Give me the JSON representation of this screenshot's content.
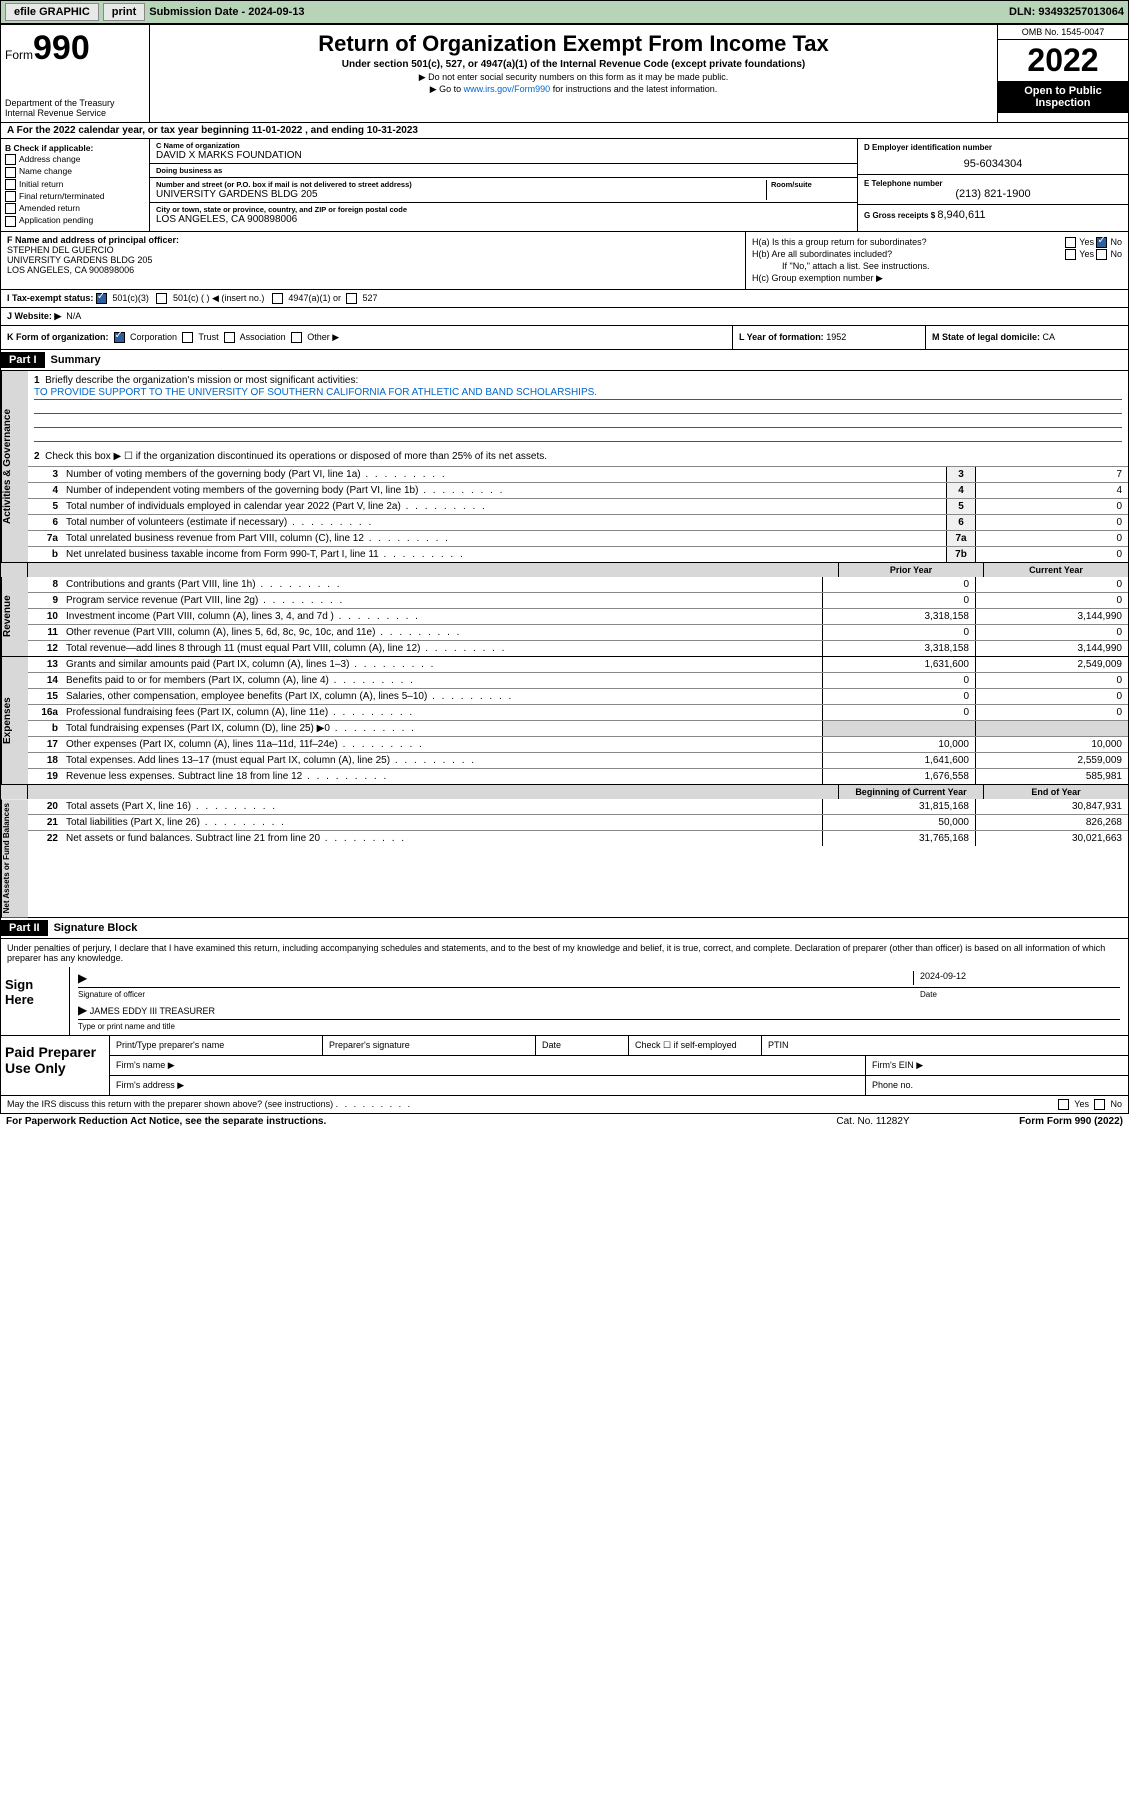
{
  "topbar": {
    "efile": "efile GRAPHIC",
    "print": "print",
    "sub_label": "Submission Date - ",
    "sub_date": "2024-09-13",
    "dln_label": "DLN: ",
    "dln": "93493257013064"
  },
  "header": {
    "form_label": "Form",
    "form_num": "990",
    "dept": "Department of the Treasury",
    "irs": "Internal Revenue Service",
    "title": "Return of Organization Exempt From Income Tax",
    "sub": "Under section 501(c), 527, or 4947(a)(1) of the Internal Revenue Code (except private foundations)",
    "note1": "▶ Do not enter social security numbers on this form as it may be made public.",
    "note2_pre": "▶ Go to ",
    "note2_link": "www.irs.gov/Form990",
    "note2_post": " for instructions and the latest information.",
    "omb": "OMB No. 1545-0047",
    "year": "2022",
    "open": "Open to Public Inspection"
  },
  "rowA": {
    "text_pre": "A For the 2022 calendar year, or tax year beginning ",
    "begin": "11-01-2022",
    "mid": " , and ending ",
    "end": "10-31-2023"
  },
  "colB": {
    "hdr": "B Check if applicable:",
    "items": [
      "Address change",
      "Name change",
      "Initial return",
      "Final return/terminated",
      "Amended return",
      "Application pending"
    ]
  },
  "colC": {
    "name_lbl": "C Name of organization",
    "name": "DAVID X MARKS FOUNDATION",
    "dba_lbl": "Doing business as",
    "dba": "",
    "addr_lbl": "Number and street (or P.O. box if mail is not delivered to street address)",
    "room_lbl": "Room/suite",
    "addr": "UNIVERSITY GARDENS BLDG 205",
    "city_lbl": "City or town, state or province, country, and ZIP or foreign postal code",
    "city": "LOS ANGELES, CA  900898006"
  },
  "colDE": {
    "d_lbl": "D Employer identification number",
    "d_val": "95-6034304",
    "e_lbl": "E Telephone number",
    "e_val": "(213) 821-1900",
    "g_lbl": "G Gross receipts $ ",
    "g_val": "8,940,611"
  },
  "rowF": {
    "lbl": "F Name and address of principal officer:",
    "name": "STEPHEN DEL GUERCIO",
    "addr1": "UNIVERSITY GARDENS BLDG 205",
    "addr2": "LOS ANGELES, CA  900898006"
  },
  "rowH": {
    "ha": "H(a)  Is this a group return for subordinates?",
    "hb": "H(b)  Are all subordinates included?",
    "hb_note": "If \"No,\" attach a list. See instructions.",
    "hc": "H(c)  Group exemption number ▶",
    "yes": "Yes",
    "no": "No"
  },
  "rowI": {
    "lbl": "I    Tax-exempt status:",
    "opt1": "501(c)(3)",
    "opt2": "501(c) (  ) ◀ (insert no.)",
    "opt3": "4947(a)(1) or",
    "opt4": "527"
  },
  "rowJ": {
    "lbl": "J   Website: ▶",
    "val": "N/A"
  },
  "rowK": {
    "lbl": "K Form of organization:",
    "opts": [
      "Corporation",
      "Trust",
      "Association",
      "Other ▶"
    ],
    "l_lbl": "L Year of formation: ",
    "l_val": "1952",
    "m_lbl": "M State of legal domicile: ",
    "m_val": "CA"
  },
  "part1": {
    "hdr": "Part I",
    "title": "Summary",
    "briefly_lbl": "Briefly describe the organization's mission or most significant activities:",
    "mission": "TO PROVIDE SUPPORT TO THE UNIVERSITY OF SOUTHERN CALIFORNIA FOR ATHLETIC AND BAND SCHOLARSHIPS.",
    "line2": "Check this box ▶ ☐  if the organization discontinued its operations or disposed of more than 25% of its net assets.",
    "sections": {
      "gov": "Activities & Governance",
      "rev": "Revenue",
      "exp": "Expenses",
      "net": "Net Assets or Fund Balances"
    },
    "lines_gov": [
      {
        "n": "3",
        "t": "Number of voting members of the governing body (Part VI, line 1a)",
        "box": "3",
        "v": "7"
      },
      {
        "n": "4",
        "t": "Number of independent voting members of the governing body (Part VI, line 1b)",
        "box": "4",
        "v": "4"
      },
      {
        "n": "5",
        "t": "Total number of individuals employed in calendar year 2022 (Part V, line 2a)",
        "box": "5",
        "v": "0"
      },
      {
        "n": "6",
        "t": "Total number of volunteers (estimate if necessary)",
        "box": "6",
        "v": "0"
      },
      {
        "n": "7a",
        "t": "Total unrelated business revenue from Part VIII, column (C), line 12",
        "box": "7a",
        "v": "0"
      },
      {
        "n": "b",
        "t": "Net unrelated business taxable income from Form 990-T, Part I, line 11",
        "box": "7b",
        "v": "0"
      }
    ],
    "col_hdrs": {
      "prior": "Prior Year",
      "curr": "Current Year",
      "boy": "Beginning of Current Year",
      "eoy": "End of Year"
    },
    "lines_rev": [
      {
        "n": "8",
        "t": "Contributions and grants (Part VIII, line 1h)",
        "p": "0",
        "c": "0"
      },
      {
        "n": "9",
        "t": "Program service revenue (Part VIII, line 2g)",
        "p": "0",
        "c": "0"
      },
      {
        "n": "10",
        "t": "Investment income (Part VIII, column (A), lines 3, 4, and 7d )",
        "p": "3,318,158",
        "c": "3,144,990"
      },
      {
        "n": "11",
        "t": "Other revenue (Part VIII, column (A), lines 5, 6d, 8c, 9c, 10c, and 11e)",
        "p": "0",
        "c": "0"
      },
      {
        "n": "12",
        "t": "Total revenue—add lines 8 through 11 (must equal Part VIII, column (A), line 12)",
        "p": "3,318,158",
        "c": "3,144,990"
      }
    ],
    "lines_exp": [
      {
        "n": "13",
        "t": "Grants and similar amounts paid (Part IX, column (A), lines 1–3)",
        "p": "1,631,600",
        "c": "2,549,009"
      },
      {
        "n": "14",
        "t": "Benefits paid to or for members (Part IX, column (A), line 4)",
        "p": "0",
        "c": "0"
      },
      {
        "n": "15",
        "t": "Salaries, other compensation, employee benefits (Part IX, column (A), lines 5–10)",
        "p": "0",
        "c": "0"
      },
      {
        "n": "16a",
        "t": "Professional fundraising fees (Part IX, column (A), line 11e)",
        "p": "0",
        "c": "0"
      },
      {
        "n": "b",
        "t": "Total fundraising expenses (Part IX, column (D), line 25) ▶0",
        "p": "",
        "c": "",
        "shade": true
      },
      {
        "n": "17",
        "t": "Other expenses (Part IX, column (A), lines 11a–11d, 11f–24e)",
        "p": "10,000",
        "c": "10,000"
      },
      {
        "n": "18",
        "t": "Total expenses. Add lines 13–17 (must equal Part IX, column (A), line 25)",
        "p": "1,641,600",
        "c": "2,559,009"
      },
      {
        "n": "19",
        "t": "Revenue less expenses. Subtract line 18 from line 12",
        "p": "1,676,558",
        "c": "585,981"
      }
    ],
    "lines_net": [
      {
        "n": "20",
        "t": "Total assets (Part X, line 16)",
        "p": "31,815,168",
        "c": "30,847,931"
      },
      {
        "n": "21",
        "t": "Total liabilities (Part X, line 26)",
        "p": "50,000",
        "c": "826,268"
      },
      {
        "n": "22",
        "t": "Net assets or fund balances. Subtract line 21 from line 20",
        "p": "31,765,168",
        "c": "30,021,663"
      }
    ]
  },
  "part2": {
    "hdr": "Part II",
    "title": "Signature Block",
    "decl": "Under penalties of perjury, I declare that I have examined this return, including accompanying schedules and statements, and to the best of my knowledge and belief, it is true, correct, and complete. Declaration of preparer (other than officer) is based on all information of which preparer has any knowledge.",
    "sign_here": "Sign Here",
    "sig_of_officer": "Signature of officer",
    "date_lbl": "Date",
    "date": "2024-09-12",
    "officer_name": "JAMES EDDY III  TREASURER",
    "type_name": "Type or print name and title",
    "paid": "Paid Preparer Use Only",
    "p_name": "Print/Type preparer's name",
    "p_sig": "Preparer's signature",
    "p_date": "Date",
    "p_check": "Check ☐ if self-employed",
    "ptin": "PTIN",
    "firm_name": "Firm's name  ▶",
    "firm_ein": "Firm's EIN ▶",
    "firm_addr": "Firm's address ▶",
    "phone": "Phone no.",
    "may_irs": "May the IRS discuss this return with the preparer shown above? (see instructions)",
    "yes": "Yes",
    "no": "No"
  },
  "footer": {
    "pra": "For Paperwork Reduction Act Notice, see the separate instructions.",
    "cat": "Cat. No. 11282Y",
    "form": "Form 990 (2022)"
  }
}
